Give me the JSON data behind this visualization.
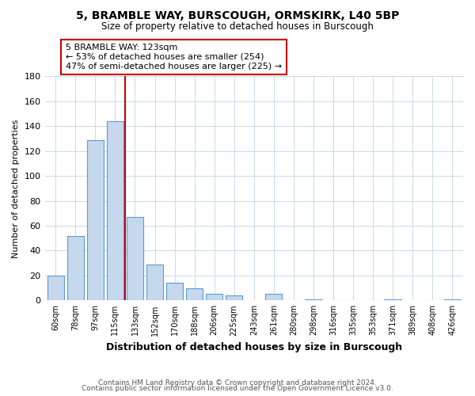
{
  "title": "5, BRAMBLE WAY, BURSCOUGH, ORMSKIRK, L40 5BP",
  "subtitle": "Size of property relative to detached houses in Burscough",
  "xlabel": "Distribution of detached houses by size in Burscough",
  "ylabel": "Number of detached properties",
  "categories": [
    "60sqm",
    "78sqm",
    "97sqm",
    "115sqm",
    "133sqm",
    "152sqm",
    "170sqm",
    "188sqm",
    "206sqm",
    "225sqm",
    "243sqm",
    "261sqm",
    "280sqm",
    "298sqm",
    "316sqm",
    "335sqm",
    "353sqm",
    "371sqm",
    "389sqm",
    "408sqm",
    "426sqm"
  ],
  "values": [
    20,
    52,
    129,
    144,
    67,
    29,
    14,
    10,
    5,
    4,
    0,
    5,
    0,
    1,
    0,
    0,
    0,
    1,
    0,
    0,
    1
  ],
  "bar_color": "#c5d8ed",
  "bar_edge_color": "#5b9bd5",
  "ylim": [
    0,
    180
  ],
  "yticks": [
    0,
    20,
    40,
    60,
    80,
    100,
    120,
    140,
    160,
    180
  ],
  "property_line_x": 3.5,
  "property_line_color": "#cc0000",
  "annotation_title": "5 BRAMBLE WAY: 123sqm",
  "annotation_line1": "← 53% of detached houses are smaller (254)",
  "annotation_line2": "47% of semi-detached houses are larger (225) →",
  "annotation_box_color": "#ffffff",
  "annotation_box_edge": "#cc0000",
  "footer1": "Contains HM Land Registry data © Crown copyright and database right 2024.",
  "footer2": "Contains public sector information licensed under the Open Government Licence v3.0.",
  "bg_color": "#ffffff",
  "grid_color": "#c8daea"
}
